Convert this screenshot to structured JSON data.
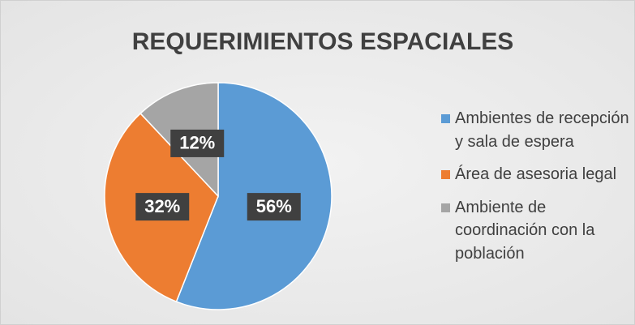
{
  "chart_data": {
    "type": "pie",
    "title": "REQUERIMIENTOS ESPACIALES",
    "categories": [
      "Ambientes de recepción y sala de espera",
      "Área de asesoria legal",
      "Ambiente de coordinación con la población"
    ],
    "values": [
      56,
      32,
      12
    ],
    "value_labels": [
      "56%",
      "32%",
      "12%"
    ],
    "colors": [
      "#5b9bd5",
      "#ed7d31",
      "#a5a5a5"
    ],
    "legend": "right"
  }
}
